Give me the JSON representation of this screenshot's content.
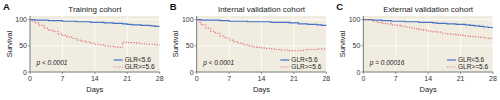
{
  "chart_data": [
    {
      "type": "step",
      "title": "Training cohort",
      "x_label": "Days",
      "y_label": "Survival",
      "annotations": [
        "A",
        "p < 0.0001"
      ],
      "xlim": [
        0,
        28
      ],
      "xticks": [
        0,
        7,
        14,
        21,
        28
      ],
      "ylim": [
        0,
        107
      ],
      "yticks": [
        0,
        50,
        100
      ],
      "grid": true,
      "legend": "lower right",
      "series": [
        {
          "name": "GLR<5.6",
          "color": "#4472c4",
          "line_style": "solid",
          "x": [
            0,
            0.5,
            1,
            2,
            3,
            4,
            5,
            6,
            7,
            8,
            9,
            10,
            11,
            12,
            13,
            14,
            15,
            16,
            17,
            18,
            19,
            20,
            21,
            22,
            23,
            24,
            25,
            26,
            27,
            28
          ],
          "values": [
            100,
            100,
            99,
            99,
            99,
            98,
            98,
            98,
            97,
            97,
            97,
            96,
            96,
            96,
            95,
            95,
            95,
            94,
            94,
            93,
            93,
            92,
            91,
            90,
            90,
            89,
            89,
            88,
            87,
            87
          ]
        },
        {
          "name": "GLR>=5.6",
          "color": "#e07070",
          "line_style": "dotted",
          "x": [
            0,
            0.5,
            1,
            2,
            3,
            4,
            5,
            6,
            7,
            8,
            9,
            10,
            11,
            12,
            13,
            14,
            15,
            16,
            17,
            18,
            19,
            20,
            21,
            22,
            23,
            24,
            25,
            26,
            27,
            28
          ],
          "values": [
            100,
            97,
            94,
            89,
            84,
            80,
            77,
            73,
            70,
            67,
            64,
            61,
            59,
            57,
            55,
            53,
            52,
            50,
            49,
            48,
            47,
            57,
            56,
            56,
            55,
            54,
            53,
            53,
            52,
            51
          ]
        }
      ]
    },
    {
      "type": "step",
      "title": "Internal validation cohort",
      "x_label": "Days",
      "y_label": "Survival",
      "annotations": [
        "B",
        "p < 0.0001"
      ],
      "xlim": [
        0,
        28
      ],
      "xticks": [
        0,
        7,
        14,
        21,
        28
      ],
      "ylim": [
        0,
        107
      ],
      "yticks": [
        0,
        50,
        100
      ],
      "grid": true,
      "legend": "lower right",
      "series": [
        {
          "name": "GLR<5.6",
          "color": "#4472c4",
          "line_style": "solid",
          "x": [
            0,
            1,
            2,
            3,
            4,
            5,
            6,
            7,
            8,
            9,
            10,
            11,
            12,
            13,
            14,
            15,
            16,
            17,
            18,
            19,
            20,
            21,
            22,
            23,
            24,
            25,
            26,
            27,
            28
          ],
          "values": [
            100,
            99,
            99,
            99,
            99,
            98,
            98,
            97,
            97,
            97,
            97,
            96,
            96,
            96,
            96,
            96,
            95,
            95,
            95,
            95,
            94,
            94,
            92,
            92,
            91,
            91,
            90,
            89,
            88
          ]
        },
        {
          "name": "GLR>=5.6",
          "color": "#e07070",
          "line_style": "dotted",
          "x": [
            0,
            0.5,
            1,
            2,
            3,
            4,
            5,
            6,
            7,
            8,
            9,
            10,
            11,
            12,
            13,
            14,
            15,
            16,
            17,
            18,
            19,
            20,
            21,
            22,
            23,
            24,
            25,
            26,
            27,
            28
          ],
          "values": [
            100,
            95,
            90,
            84,
            78,
            74,
            69,
            65,
            61,
            58,
            55,
            52,
            50,
            48,
            47,
            46,
            45,
            44,
            43,
            42,
            42,
            41,
            41,
            41,
            42,
            43,
            43,
            44,
            44,
            44
          ]
        }
      ]
    },
    {
      "type": "step",
      "title": "External validation cohort",
      "x_label": "Days",
      "y_label": "Survival",
      "annotations": [
        "C",
        "p = 0.00016"
      ],
      "xlim": [
        0,
        28
      ],
      "xticks": [
        0,
        7,
        14,
        21,
        28
      ],
      "ylim": [
        0,
        107
      ],
      "yticks": [
        0,
        50,
        100
      ],
      "grid": true,
      "legend": "lower right",
      "series": [
        {
          "name": "GLR<5.6",
          "color": "#4472c4",
          "line_style": "solid",
          "x": [
            0,
            1,
            2,
            3,
            4,
            5,
            6,
            7,
            8,
            9,
            10,
            11,
            12,
            13,
            14,
            15,
            16,
            17,
            18,
            19,
            20,
            21,
            22,
            23,
            24,
            25,
            26,
            27,
            28
          ],
          "values": [
            100,
            100,
            99,
            99,
            98,
            98,
            97,
            97,
            97,
            96,
            96,
            96,
            95,
            95,
            95,
            94,
            93,
            93,
            92,
            92,
            91,
            91,
            90,
            89,
            88,
            87,
            86,
            85,
            84
          ]
        },
        {
          "name": "GLR>=5.6",
          "color": "#e07070",
          "line_style": "dotted",
          "x": [
            0,
            1,
            2,
            3,
            4,
            5,
            6,
            7,
            8,
            9,
            10,
            11,
            12,
            13,
            14,
            15,
            16,
            17,
            18,
            19,
            20,
            21,
            22,
            23,
            24,
            25,
            26,
            27,
            28
          ],
          "values": [
            100,
            99,
            97,
            95,
            93,
            92,
            90,
            89,
            87,
            86,
            84,
            83,
            81,
            80,
            78,
            77,
            76,
            74,
            73,
            72,
            71,
            70,
            69,
            68,
            67,
            66,
            65,
            64,
            64
          ]
        }
      ]
    }
  ]
}
